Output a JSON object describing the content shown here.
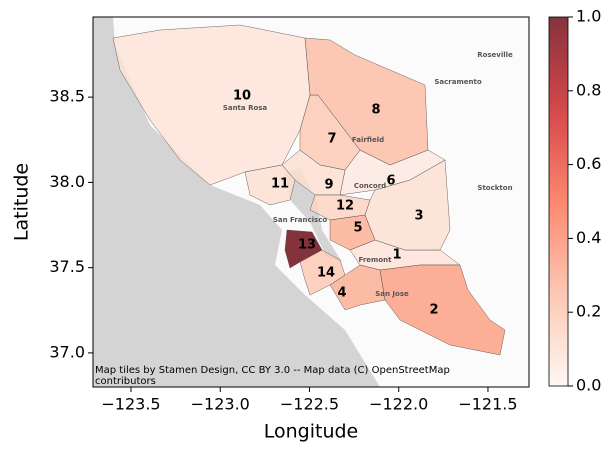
{
  "chart_data": {
    "type": "choropleth",
    "xlabel": "Longitude",
    "ylabel": "Latitude",
    "xlim": [
      -123.713,
      -121.27
    ],
    "ylim": [
      36.8,
      38.97
    ],
    "xticks": [
      {
        "value": -123.5,
        "label": "−123.5"
      },
      {
        "value": -123.0,
        "label": "−123.0"
      },
      {
        "value": -122.5,
        "label": "−122.5"
      },
      {
        "value": -122.0,
        "label": "−122.0"
      },
      {
        "value": -121.5,
        "label": "−121.5"
      }
    ],
    "yticks": [
      {
        "value": 37.0,
        "label": "37.0"
      },
      {
        "value": 37.5,
        "label": "37.5"
      },
      {
        "value": 38.0,
        "label": "38.0"
      },
      {
        "value": 38.5,
        "label": "38.5"
      }
    ],
    "colormap": "Reds",
    "clim": [
      0,
      1
    ],
    "cticks": [
      {
        "value": 0,
        "label": "0.0"
      },
      {
        "value": 0.2,
        "label": "0.2"
      },
      {
        "value": 0.4,
        "label": "0.4"
      },
      {
        "value": 0.6,
        "label": "0.6"
      },
      {
        "value": 0.8,
        "label": "0.8"
      },
      {
        "value": 1,
        "label": "1.0"
      }
    ],
    "regions": [
      "1",
      "2",
      "3",
      "4",
      "5",
      "6",
      "7",
      "8",
      "9",
      "10",
      "11",
      "12",
      "13",
      "14"
    ],
    "values": [
      0.08,
      0.35,
      0.1,
      0.3,
      0.3,
      0.05,
      0.2,
      0.25,
      0.1,
      0.08,
      0.1,
      0.15,
      1.0,
      0.2
    ],
    "place_labels": [
      "Roseville",
      "Sacramento",
      "Fairfield",
      "Santa Rosa",
      "Concord",
      "San Francisco",
      "Stockton",
      "Fremont",
      "San Jose"
    ],
    "attribution": [
      "Map tiles by Stamen Design, CC BY 3.0 -- Map data (C) OpenStreetMap",
      "contributors"
    ]
  }
}
